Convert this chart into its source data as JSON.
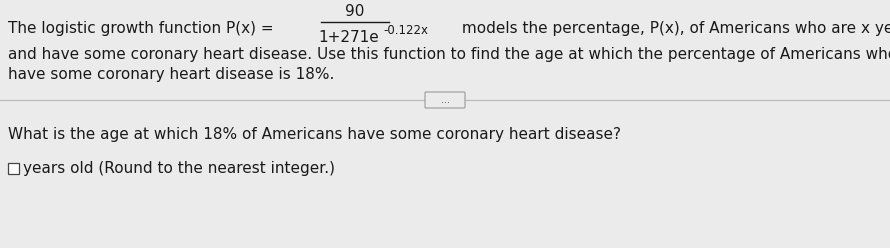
{
  "bg_color": "#ebebeb",
  "text_color": "#1a1a1a",
  "font_family": "DejaVu Sans",
  "fs_main": 11.0,
  "fs_super": 8.5,
  "fs_small": 10.5,
  "line1_pre": "The logistic growth function P(x) = ",
  "numerator": "90",
  "denom_text": "1+271e",
  "exponent": "-0.122x",
  "line1_post": " models the percentage, P(x), of Americans who are x years old",
  "line2": "and have some coronary heart disease. Use this function to find the age at which the percentage of Americans who",
  "line3": "have some coronary heart disease is 18%.",
  "divider_dots": "...",
  "question": "What is the age at which 18% of Americans have some coronary heart disease?",
  "answer_label": "years old (Round to the nearest integer.)"
}
